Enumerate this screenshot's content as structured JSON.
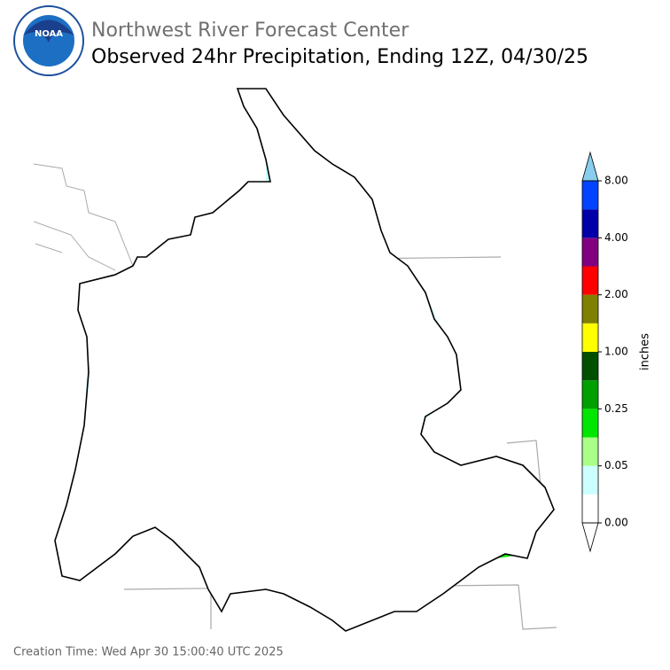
{
  "logo": {
    "text": "NOAA"
  },
  "header": {
    "title": "Northwest River Forecast Center",
    "subtitle": "Observed 24hr Precipitation, Ending 12Z, 04/30/25"
  },
  "colorbar": {
    "label": "inches",
    "colors": [
      "#ffffff",
      "#ccffff",
      "#aaff88",
      "#00e600",
      "#00a000",
      "#005000",
      "#ffff00",
      "#808000",
      "#ff0000",
      "#800080",
      "#0000aa",
      "#0044ff"
    ],
    "under_color": "#ffffff",
    "over_color": "#88ccee",
    "ticks": [
      {
        "value": 0,
        "label": "0.00"
      },
      {
        "value": 0.05,
        "label": "0.05"
      },
      {
        "value": 0.25,
        "label": "0.25"
      },
      {
        "value": 1,
        "label": "1.00"
      },
      {
        "value": 2,
        "label": "2.00"
      },
      {
        "value": 4,
        "label": "4.00"
      },
      {
        "value": 8,
        "label": "8.00"
      }
    ]
  },
  "footer": {
    "creation_time": "Creation Time: Wed Apr 30 15:00:40 UTC 2025"
  }
}
